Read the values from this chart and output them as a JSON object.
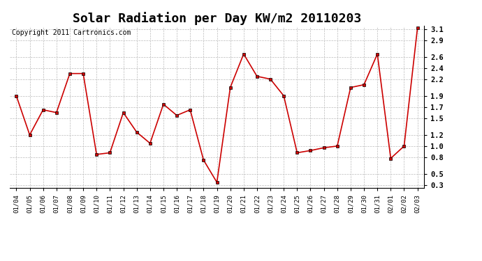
{
  "title": "Solar Radiation per Day KW/m2 20110203",
  "copyright_text": "Copyright 2011 Cartronics.com",
  "dates": [
    "01/04",
    "01/05",
    "01/06",
    "01/07",
    "01/08",
    "01/09",
    "01/10",
    "01/11",
    "01/12",
    "01/13",
    "01/14",
    "01/15",
    "01/16",
    "01/17",
    "01/18",
    "01/19",
    "01/20",
    "01/21",
    "01/22",
    "01/23",
    "01/24",
    "01/25",
    "01/26",
    "01/27",
    "01/28",
    "01/29",
    "01/30",
    "01/31",
    "02/01",
    "02/02",
    "02/03"
  ],
  "values": [
    1.9,
    1.2,
    1.65,
    1.6,
    2.3,
    2.3,
    0.85,
    0.88,
    1.6,
    1.25,
    1.05,
    1.75,
    1.55,
    1.65,
    0.75,
    0.35,
    2.05,
    2.65,
    2.25,
    2.2,
    1.9,
    0.88,
    0.92,
    0.97,
    1.0,
    2.05,
    2.1,
    2.65,
    0.78,
    1.0,
    3.12
  ],
  "line_color": "#cc0000",
  "marker_color": "#cc0000",
  "bg_color": "#ffffff",
  "grid_color": "#bbbbbb",
  "yticks": [
    0.3,
    0.5,
    0.8,
    1.0,
    1.2,
    1.5,
    1.7,
    1.9,
    2.2,
    2.4,
    2.6,
    2.9,
    3.1
  ],
  "ymin": 0.3,
  "ymax": 3.1,
  "title_fontsize": 13,
  "copyright_fontsize": 7
}
